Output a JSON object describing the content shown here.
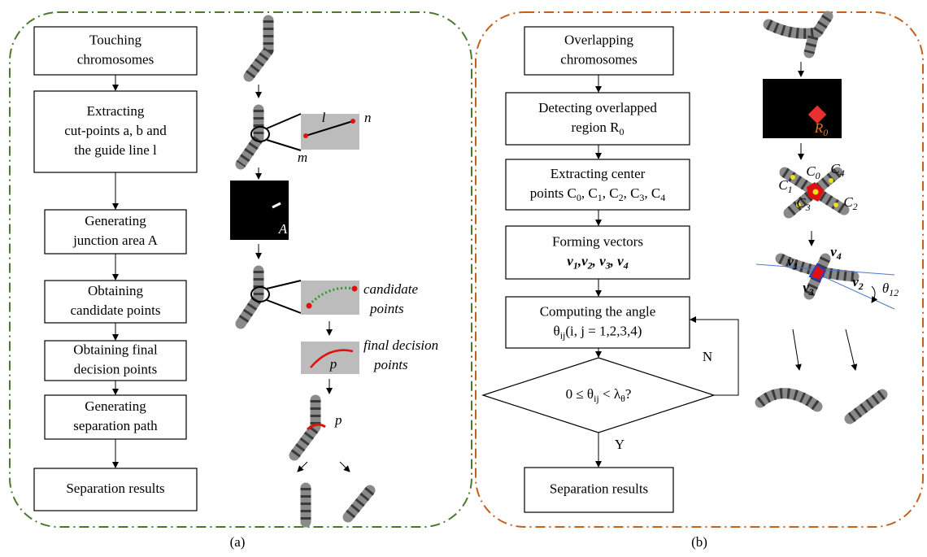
{
  "left": {
    "boxes": [
      {
        "lines": [
          "Touching",
          "chromosomes"
        ]
      },
      {
        "lines": [
          "Extracting",
          "cut-points a, b and",
          "the guide line l"
        ]
      },
      {
        "lines": [
          "Generating",
          "junction area A"
        ]
      },
      {
        "lines": [
          "Obtaining",
          "candidate points"
        ]
      },
      {
        "lines": [
          "Obtaining final",
          "decision points"
        ]
      },
      {
        "lines": [
          "Generating",
          "separation path"
        ]
      },
      {
        "lines": [
          "Separation results"
        ]
      }
    ],
    "annotations": [
      "l",
      "n",
      "m",
      "A",
      "candidate",
      "points",
      "final decision",
      "points",
      "p",
      "p"
    ],
    "caption": "(a)"
  },
  "right": {
    "boxes": [
      {
        "lines": [
          "Overlapping",
          "chromosomes"
        ]
      },
      {
        "lines": [
          "Detecting overlapped",
          [
            "region R",
            "0"
          ]
        ]
      },
      {
        "lines": [
          "Extracting center",
          [
            "points C",
            "0",
            ", C",
            "1",
            ", C",
            "2",
            ", C",
            "3",
            ", C",
            "4"
          ]
        ]
      },
      {
        "lines": [
          "Forming vectors",
          {
            "segments": [
              "v",
              "1",
              ",v",
              "2",
              ", v",
              "3",
              ", v",
              "4"
            ],
            "bold": true
          }
        ]
      },
      {
        "lines": [
          "Computing the angle",
          [
            "θ",
            "ij",
            "(i, j = 1,2,3,4)"
          ]
        ]
      },
      {
        "lines": [
          "Separation results"
        ]
      }
    ],
    "decision": {
      "lines": [
        [
          "0 ≤ θ",
          "ij",
          " < λ",
          "θ",
          "?"
        ]
      ]
    },
    "no": "N",
    "yes": "Y",
    "annotations": [
      [
        "R",
        "0"
      ],
      [
        "C",
        "0"
      ],
      [
        "C",
        "1"
      ],
      [
        "C",
        "2"
      ],
      [
        "C",
        "3"
      ],
      [
        "C",
        "4"
      ],
      {
        "segments": [
          "v",
          "1"
        ],
        "bold": true
      },
      {
        "segments": [
          "v",
          "2"
        ],
        "bold": true
      },
      {
        "segments": [
          "v",
          "3"
        ],
        "bold": true
      },
      {
        "segments": [
          "v",
          "4"
        ],
        "bold": true
      },
      [
        "θ",
        "12"
      ]
    ],
    "caption": "(b)"
  }
}
